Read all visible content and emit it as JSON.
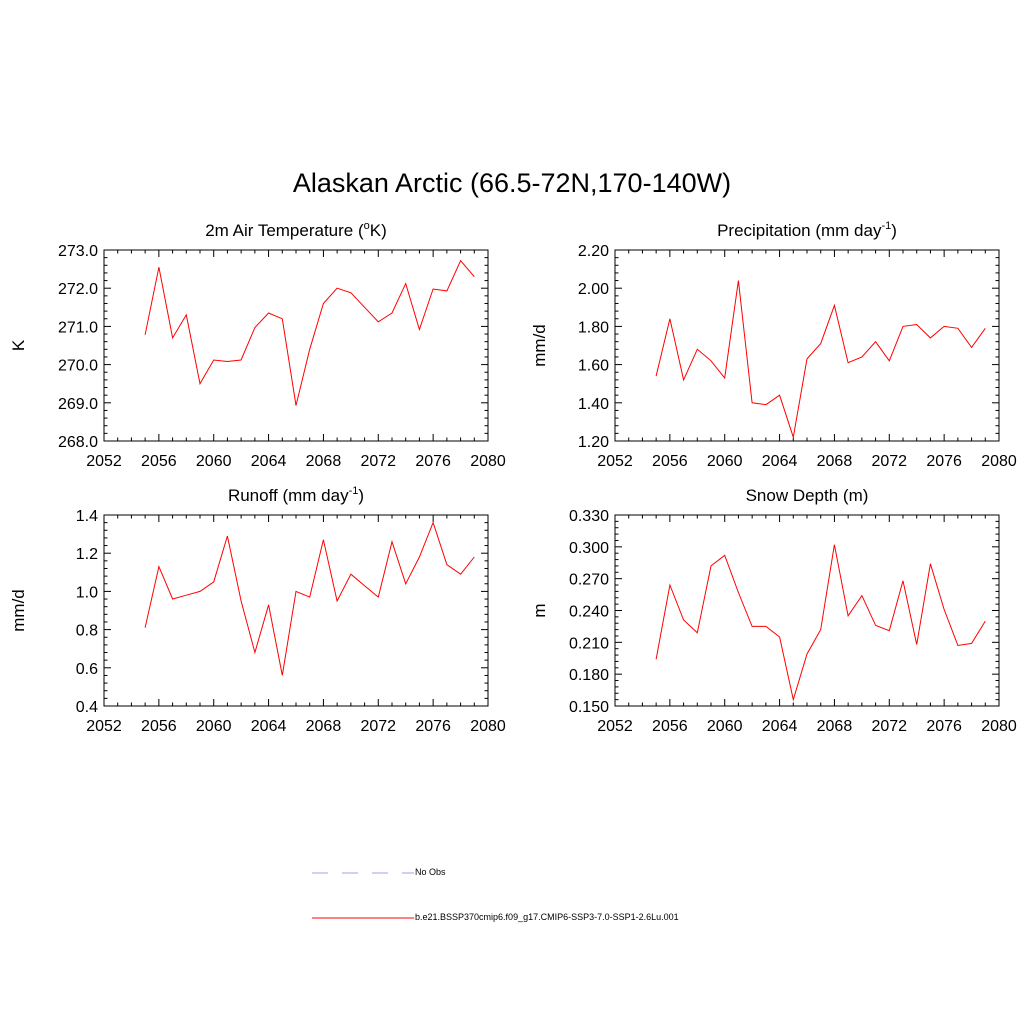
{
  "title": "Alaskan Arctic (66.5-72N,170-140W)",
  "colors": {
    "model_line": "#ff0000",
    "obs_line": "#a0a0e6",
    "axis": "#000000"
  },
  "legend": {
    "obs_label": "No Obs",
    "model_label": "b.e21.BSSP370cmip6.f09_g17.CMIP6-SSP3-7.0-SSP1-2.6Lu.001"
  },
  "chart_data": [
    {
      "type": "line",
      "title": "2m Air Temperature (",
      "title_sup": "o",
      "title_after": "K)",
      "ylabel": "K",
      "xlim": [
        2052,
        2080
      ],
      "ylim": [
        268.0,
        273.0
      ],
      "xticks": [
        "2052",
        "2056",
        "2060",
        "2064",
        "2068",
        "2072",
        "2076",
        "2080"
      ],
      "yticks": [
        "268.0",
        "269.0",
        "270.0",
        "271.0",
        "272.0",
        "273.0"
      ],
      "x": [
        2055,
        2056,
        2057,
        2058,
        2059,
        2060,
        2061,
        2062,
        2063,
        2064,
        2065,
        2066,
        2067,
        2068,
        2069,
        2070,
        2071,
        2072,
        2073,
        2074,
        2075,
        2076,
        2077,
        2078,
        2079
      ],
      "series": [
        {
          "values": [
            270.78,
            272.55,
            270.7,
            271.3,
            269.5,
            270.12,
            270.08,
            270.12,
            270.97,
            271.35,
            271.2,
            268.93,
            270.4,
            271.6,
            272.0,
            271.88,
            271.5,
            271.12,
            271.35,
            272.12,
            270.92,
            271.98,
            271.93,
            272.72,
            272.3
          ]
        }
      ]
    },
    {
      "type": "line",
      "title": "Precipitation (mm day",
      "title_sup": "-1",
      "title_after": ")",
      "ylabel": "mm/d",
      "xlim": [
        2052,
        2080
      ],
      "ylim": [
        1.2,
        2.2
      ],
      "xticks": [
        "2052",
        "2056",
        "2060",
        "2064",
        "2068",
        "2072",
        "2076",
        "2080"
      ],
      "yticks": [
        "1.20",
        "1.40",
        "1.60",
        "1.80",
        "2.00",
        "2.20"
      ],
      "x": [
        2055,
        2056,
        2057,
        2058,
        2059,
        2060,
        2061,
        2062,
        2063,
        2064,
        2065,
        2066,
        2067,
        2068,
        2069,
        2070,
        2071,
        2072,
        2073,
        2074,
        2075,
        2076,
        2077,
        2078,
        2079
      ],
      "series": [
        {
          "values": [
            1.54,
            1.84,
            1.52,
            1.68,
            1.62,
            1.53,
            2.04,
            1.4,
            1.39,
            1.44,
            1.22,
            1.63,
            1.71,
            1.91,
            1.61,
            1.64,
            1.72,
            1.62,
            1.8,
            1.81,
            1.74,
            1.8,
            1.79,
            1.69,
            1.79
          ]
        }
      ]
    },
    {
      "type": "line",
      "title": "Runoff (mm day",
      "title_sup": "-1",
      "title_after": ")",
      "ylabel": "mm/d",
      "xlim": [
        2052,
        2080
      ],
      "ylim": [
        0.4,
        1.4
      ],
      "xticks": [
        "2052",
        "2056",
        "2060",
        "2064",
        "2068",
        "2072",
        "2076",
        "2080"
      ],
      "yticks": [
        "0.4",
        "0.6",
        "0.8",
        "1.0",
        "1.2",
        "1.4"
      ],
      "x": [
        2055,
        2056,
        2057,
        2058,
        2059,
        2060,
        2061,
        2062,
        2063,
        2064,
        2065,
        2066,
        2067,
        2068,
        2069,
        2070,
        2071,
        2072,
        2073,
        2074,
        2075,
        2076,
        2077,
        2078,
        2079
      ],
      "series": [
        {
          "values": [
            0.81,
            1.13,
            0.96,
            0.98,
            1.0,
            1.05,
            1.29,
            0.95,
            0.68,
            0.93,
            0.56,
            1.0,
            0.97,
            1.27,
            0.95,
            1.09,
            1.03,
            0.97,
            1.26,
            1.04,
            1.18,
            1.36,
            1.14,
            1.09,
            1.18
          ]
        }
      ]
    },
    {
      "type": "line",
      "title": "Snow Depth (m)",
      "title_sup": "",
      "title_after": "",
      "ylabel": "m",
      "xlim": [
        2052,
        2080
      ],
      "ylim": [
        0.15,
        0.33
      ],
      "xticks": [
        "2052",
        "2056",
        "2060",
        "2064",
        "2068",
        "2072",
        "2076",
        "2080"
      ],
      "yticks": [
        "0.150",
        "0.180",
        "0.210",
        "0.240",
        "0.270",
        "0.300",
        "0.330"
      ],
      "x": [
        2055,
        2056,
        2057,
        2058,
        2059,
        2060,
        2061,
        2062,
        2063,
        2064,
        2065,
        2066,
        2067,
        2068,
        2069,
        2070,
        2071,
        2072,
        2073,
        2074,
        2075,
        2076,
        2077,
        2078,
        2079
      ],
      "series": [
        {
          "values": [
            0.194,
            0.264,
            0.231,
            0.219,
            0.282,
            0.292,
            0.257,
            0.225,
            0.225,
            0.215,
            0.156,
            0.199,
            0.222,
            0.302,
            0.235,
            0.254,
            0.226,
            0.221,
            0.268,
            0.208,
            0.284,
            0.241,
            0.207,
            0.209,
            0.23
          ]
        }
      ]
    }
  ]
}
